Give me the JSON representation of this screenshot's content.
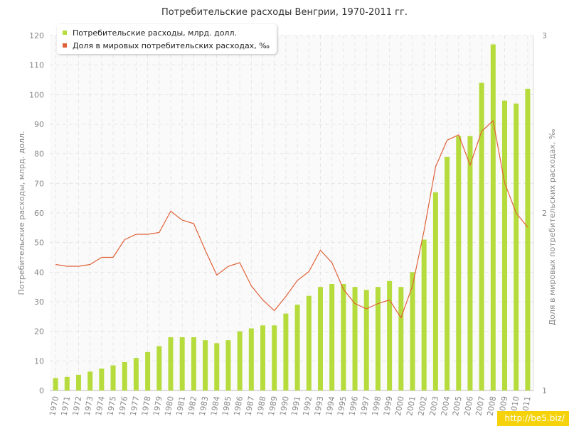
{
  "chart_data": {
    "type": "bar",
    "title": "Потребительские расходы Венгрии, 1970-2011 гг.",
    "ylabel": "Потребительские расходы, млрд. долл.",
    "ylabel_right": "Доля в мировых потребительских расходах, ‰",
    "ylim": [
      0,
      120
    ],
    "y_ticks": [
      0,
      10,
      20,
      30,
      40,
      50,
      60,
      70,
      80,
      90,
      100,
      110,
      120
    ],
    "ylim_right": [
      1,
      3
    ],
    "y_ticks_right": [
      1,
      2,
      3
    ],
    "grid": true,
    "legend_position": "top-left",
    "categories": [
      "1970",
      "1971",
      "1972",
      "1973",
      "1974",
      "1975",
      "1976",
      "1977",
      "1978",
      "1979",
      "1980",
      "1981",
      "1982",
      "1983",
      "1984",
      "1985",
      "1986",
      "1987",
      "1988",
      "1989",
      "1990",
      "1991",
      "1992",
      "1993",
      "1994",
      "1995",
      "1996",
      "1997",
      "1998",
      "1999",
      "2000",
      "2001",
      "2002",
      "2003",
      "2004",
      "2005",
      "2006",
      "2007",
      "2008",
      "2009",
      "2010",
      "2011"
    ],
    "series": [
      {
        "name": "Потребительские расходы, млрд. долл.",
        "type": "bar",
        "axis": "left",
        "color": "#b5dc3c",
        "values": [
          4.2,
          4.6,
          5.3,
          6.4,
          7.4,
          8.5,
          9.6,
          11,
          13,
          15,
          18,
          18,
          18,
          17,
          16,
          17,
          20,
          21,
          22,
          22,
          26,
          29,
          32,
          35,
          36,
          36,
          35,
          34,
          35,
          37,
          35,
          40,
          51,
          67,
          79,
          86,
          86,
          104,
          117,
          98,
          97,
          102
        ]
      },
      {
        "name": "Доля в мировых потребительских расходах, ‰",
        "type": "line",
        "axis": "right",
        "color": "#e0623a",
        "values": [
          1.71,
          1.7,
          1.7,
          1.71,
          1.75,
          1.75,
          1.85,
          1.88,
          1.88,
          1.89,
          2.01,
          1.96,
          1.94,
          1.79,
          1.65,
          1.7,
          1.72,
          1.59,
          1.51,
          1.45,
          1.53,
          1.62,
          1.67,
          1.79,
          1.72,
          1.57,
          1.49,
          1.46,
          1.49,
          1.51,
          1.41,
          1.59,
          1.9,
          2.26,
          2.41,
          2.44,
          2.27,
          2.46,
          2.52,
          2.17,
          2.0,
          1.92
        ]
      }
    ]
  },
  "watermark": "http://be5.biz/",
  "colors": {
    "background": "#ffffff",
    "grid": "#e6e6e6",
    "plot_band": "#fafafa",
    "axis_text": "#888888"
  }
}
